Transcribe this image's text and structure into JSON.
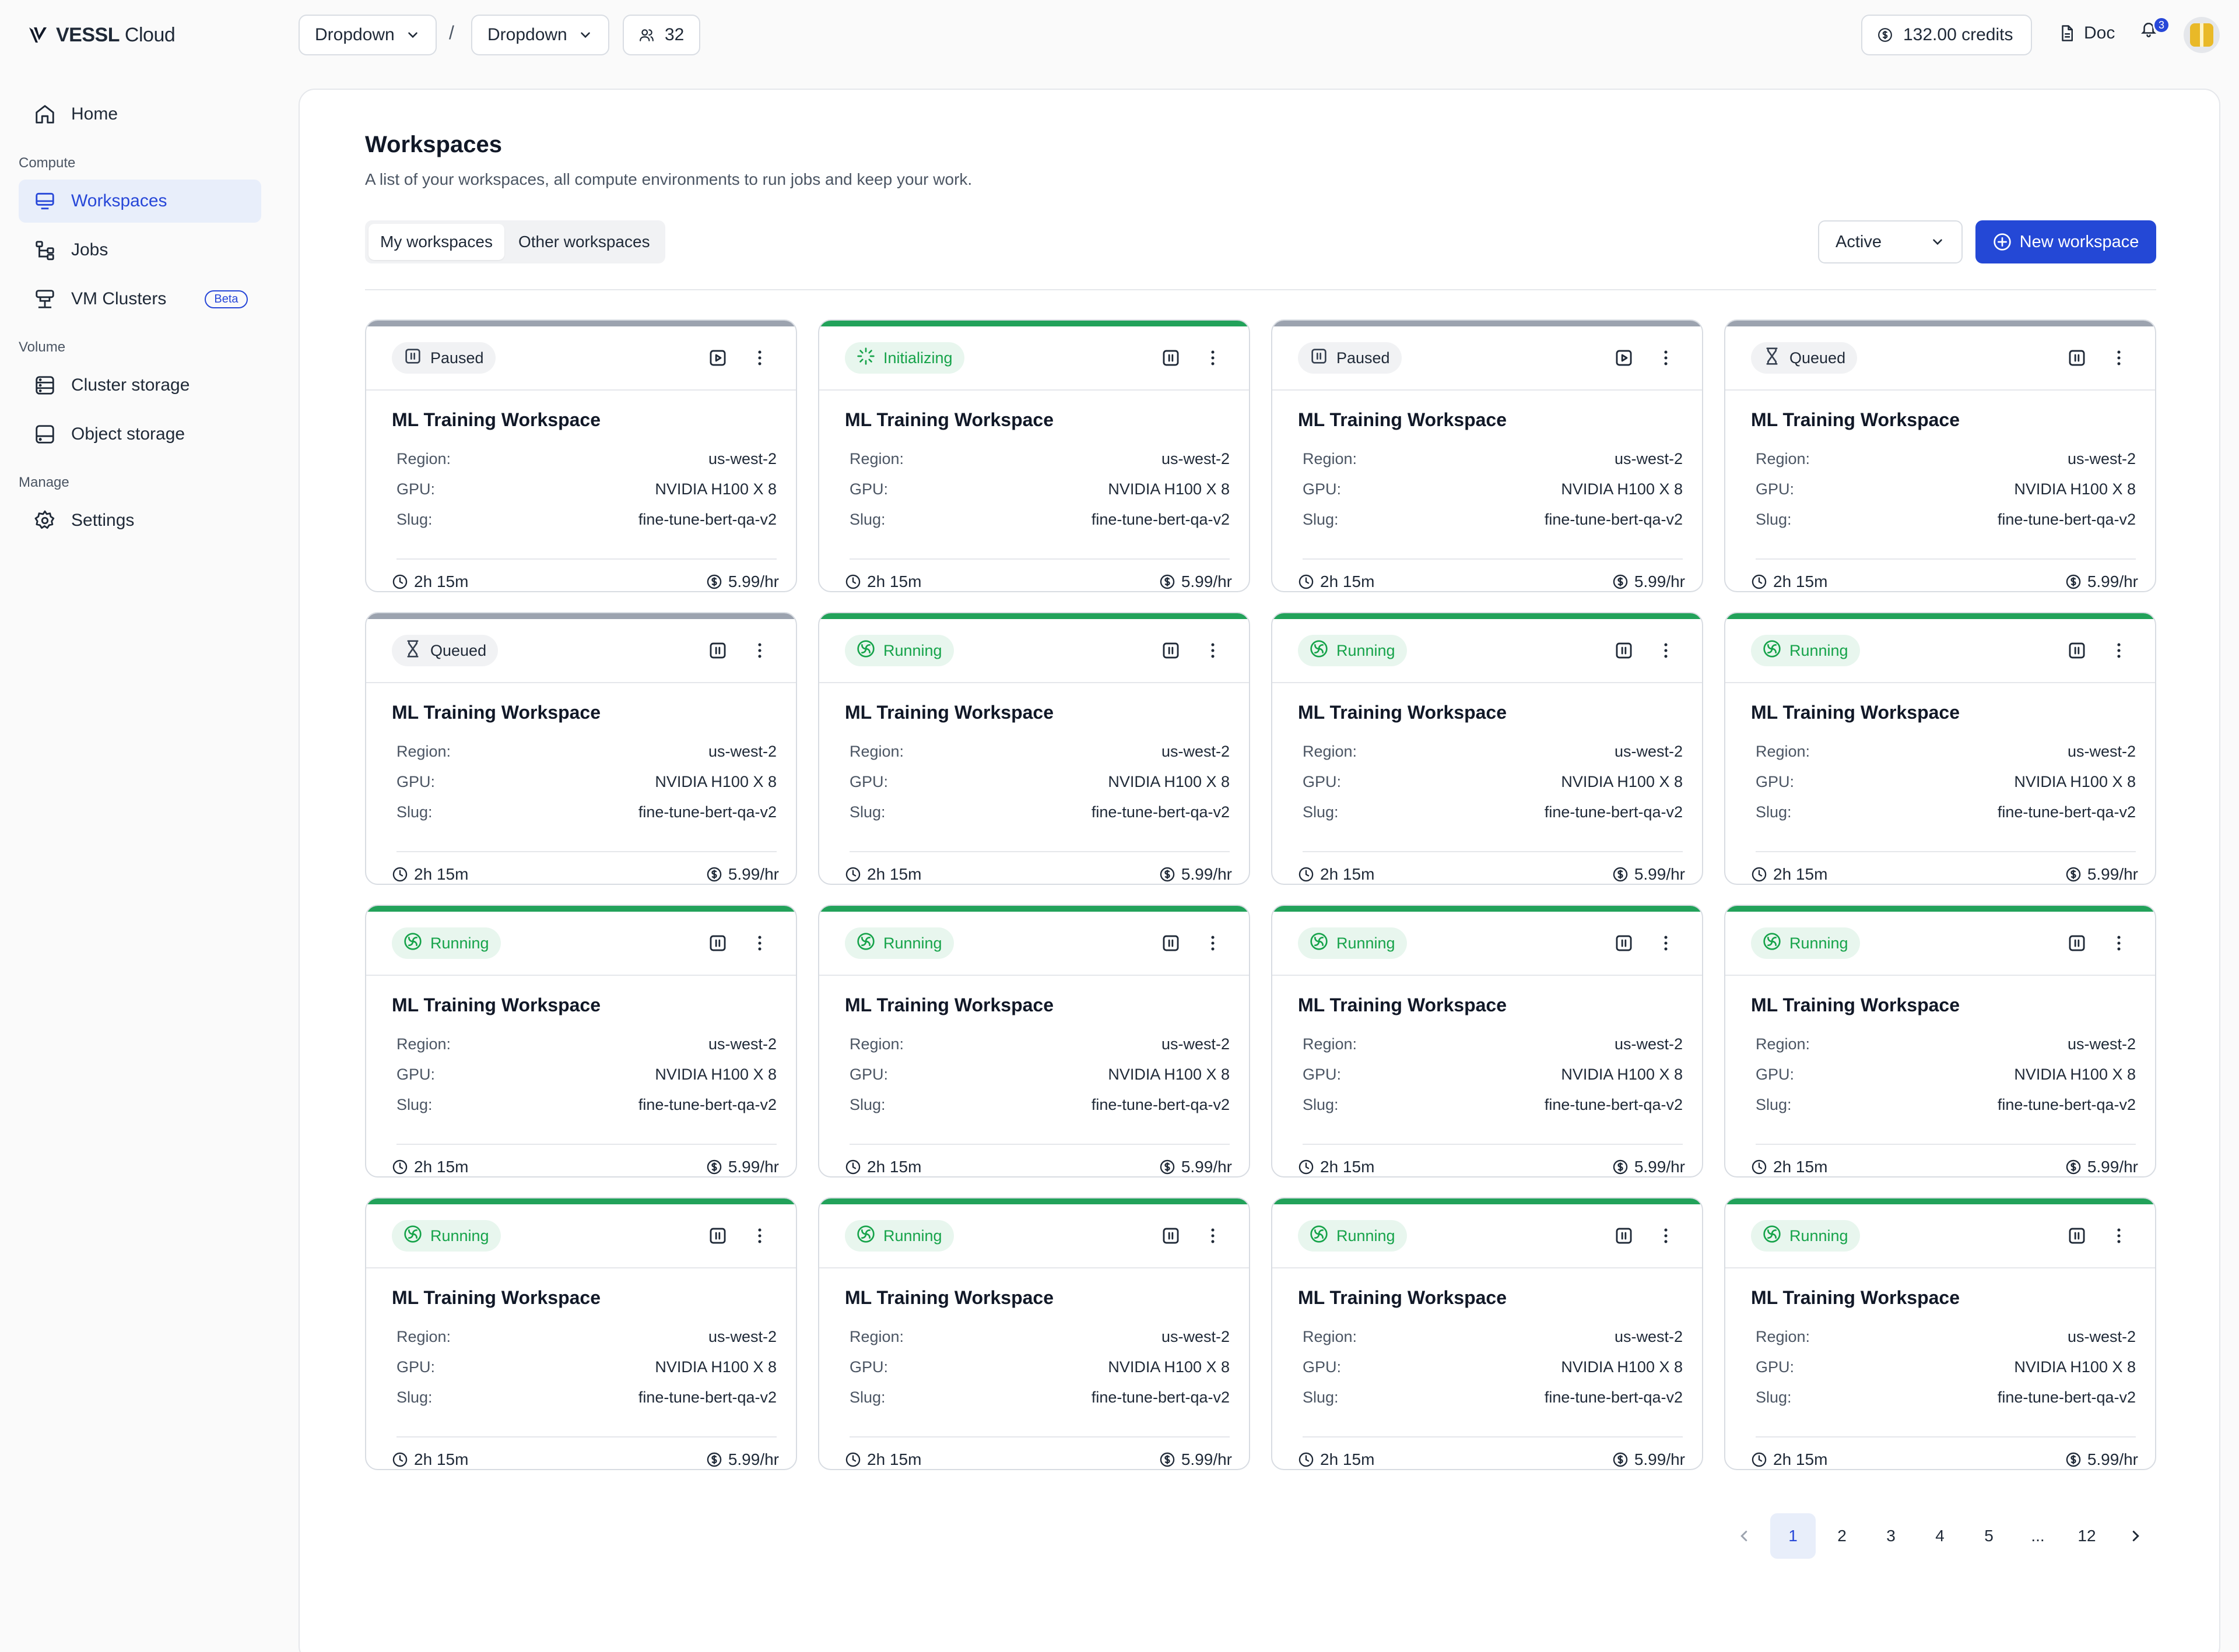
{
  "brand": {
    "name_bold": "VESSL",
    "name_rest": " Cloud"
  },
  "topbar": {
    "dropdown1": "Dropdown",
    "separator": "/",
    "dropdown2": "Dropdown",
    "members_count": "32",
    "credits": "132.00 credits",
    "doc_label": "Doc",
    "notifications_count": "3"
  },
  "sidebar": {
    "home": "Home",
    "section_compute": "Compute",
    "workspaces": "Workspaces",
    "jobs": "Jobs",
    "vm_clusters": "VM Clusters",
    "beta": "Beta",
    "section_volume": "Volume",
    "cluster_storage": "Cluster storage",
    "object_storage": "Object storage",
    "section_manage": "Manage",
    "settings": "Settings"
  },
  "main": {
    "title": "Workspaces",
    "subtitle": "A list of your workspaces, all compute environments to run jobs and keep your work.",
    "tabs": [
      "My workspaces",
      "Other workspaces"
    ],
    "filter_value": "Active",
    "new_button": "New workspace"
  },
  "colors": {
    "accent": "#2448d6",
    "running": "#16a34a",
    "paused_bar": "#9ca3af",
    "running_bar": "#22a25a"
  },
  "labels": {
    "region": "Region:",
    "gpu": "GPU:",
    "slug": "Slug:"
  },
  "cards": [
    {
      "status": "Paused",
      "name": "ML Training Workspace",
      "region": "us-west-2",
      "gpu": "NVIDIA H100 X 8",
      "slug": "fine-tune-bert-qa-v2",
      "duration": "2h 15m",
      "price": "5.99/hr"
    },
    {
      "status": "Initializing",
      "name": "ML Training Workspace",
      "region": "us-west-2",
      "gpu": "NVIDIA H100 X 8",
      "slug": "fine-tune-bert-qa-v2",
      "duration": "2h 15m",
      "price": "5.99/hr"
    },
    {
      "status": "Paused",
      "name": "ML Training Workspace",
      "region": "us-west-2",
      "gpu": "NVIDIA H100 X 8",
      "slug": "fine-tune-bert-qa-v2",
      "duration": "2h 15m",
      "price": "5.99/hr"
    },
    {
      "status": "Queued",
      "name": "ML Training Workspace",
      "region": "us-west-2",
      "gpu": "NVIDIA H100 X 8",
      "slug": "fine-tune-bert-qa-v2",
      "duration": "2h 15m",
      "price": "5.99/hr"
    },
    {
      "status": "Queued",
      "name": "ML Training Workspace",
      "region": "us-west-2",
      "gpu": "NVIDIA H100 X 8",
      "slug": "fine-tune-bert-qa-v2",
      "duration": "2h 15m",
      "price": "5.99/hr"
    },
    {
      "status": "Running",
      "name": "ML Training Workspace",
      "region": "us-west-2",
      "gpu": "NVIDIA H100 X 8",
      "slug": "fine-tune-bert-qa-v2",
      "duration": "2h 15m",
      "price": "5.99/hr"
    },
    {
      "status": "Running",
      "name": "ML Training Workspace",
      "region": "us-west-2",
      "gpu": "NVIDIA H100 X 8",
      "slug": "fine-tune-bert-qa-v2",
      "duration": "2h 15m",
      "price": "5.99/hr"
    },
    {
      "status": "Running",
      "name": "ML Training Workspace",
      "region": "us-west-2",
      "gpu": "NVIDIA H100 X 8",
      "slug": "fine-tune-bert-qa-v2",
      "duration": "2h 15m",
      "price": "5.99/hr"
    },
    {
      "status": "Running",
      "name": "ML Training Workspace",
      "region": "us-west-2",
      "gpu": "NVIDIA H100 X 8",
      "slug": "fine-tune-bert-qa-v2",
      "duration": "2h 15m",
      "price": "5.99/hr"
    },
    {
      "status": "Running",
      "name": "ML Training Workspace",
      "region": "us-west-2",
      "gpu": "NVIDIA H100 X 8",
      "slug": "fine-tune-bert-qa-v2",
      "duration": "2h 15m",
      "price": "5.99/hr"
    },
    {
      "status": "Running",
      "name": "ML Training Workspace",
      "region": "us-west-2",
      "gpu": "NVIDIA H100 X 8",
      "slug": "fine-tune-bert-qa-v2",
      "duration": "2h 15m",
      "price": "5.99/hr"
    },
    {
      "status": "Running",
      "name": "ML Training Workspace",
      "region": "us-west-2",
      "gpu": "NVIDIA H100 X 8",
      "slug": "fine-tune-bert-qa-v2",
      "duration": "2h 15m",
      "price": "5.99/hr"
    },
    {
      "status": "Running",
      "name": "ML Training Workspace",
      "region": "us-west-2",
      "gpu": "NVIDIA H100 X 8",
      "slug": "fine-tune-bert-qa-v2",
      "duration": "2h 15m",
      "price": "5.99/hr"
    },
    {
      "status": "Running",
      "name": "ML Training Workspace",
      "region": "us-west-2",
      "gpu": "NVIDIA H100 X 8",
      "slug": "fine-tune-bert-qa-v2",
      "duration": "2h 15m",
      "price": "5.99/hr"
    },
    {
      "status": "Running",
      "name": "ML Training Workspace",
      "region": "us-west-2",
      "gpu": "NVIDIA H100 X 8",
      "slug": "fine-tune-bert-qa-v2",
      "duration": "2h 15m",
      "price": "5.99/hr"
    },
    {
      "status": "Running",
      "name": "ML Training Workspace",
      "region": "us-west-2",
      "gpu": "NVIDIA H100 X 8",
      "slug": "fine-tune-bert-qa-v2",
      "duration": "2h 15m",
      "price": "5.99/hr"
    }
  ],
  "pagination": {
    "pages": [
      "1",
      "2",
      "3",
      "4",
      "5",
      "...",
      "12"
    ],
    "current": "1"
  }
}
